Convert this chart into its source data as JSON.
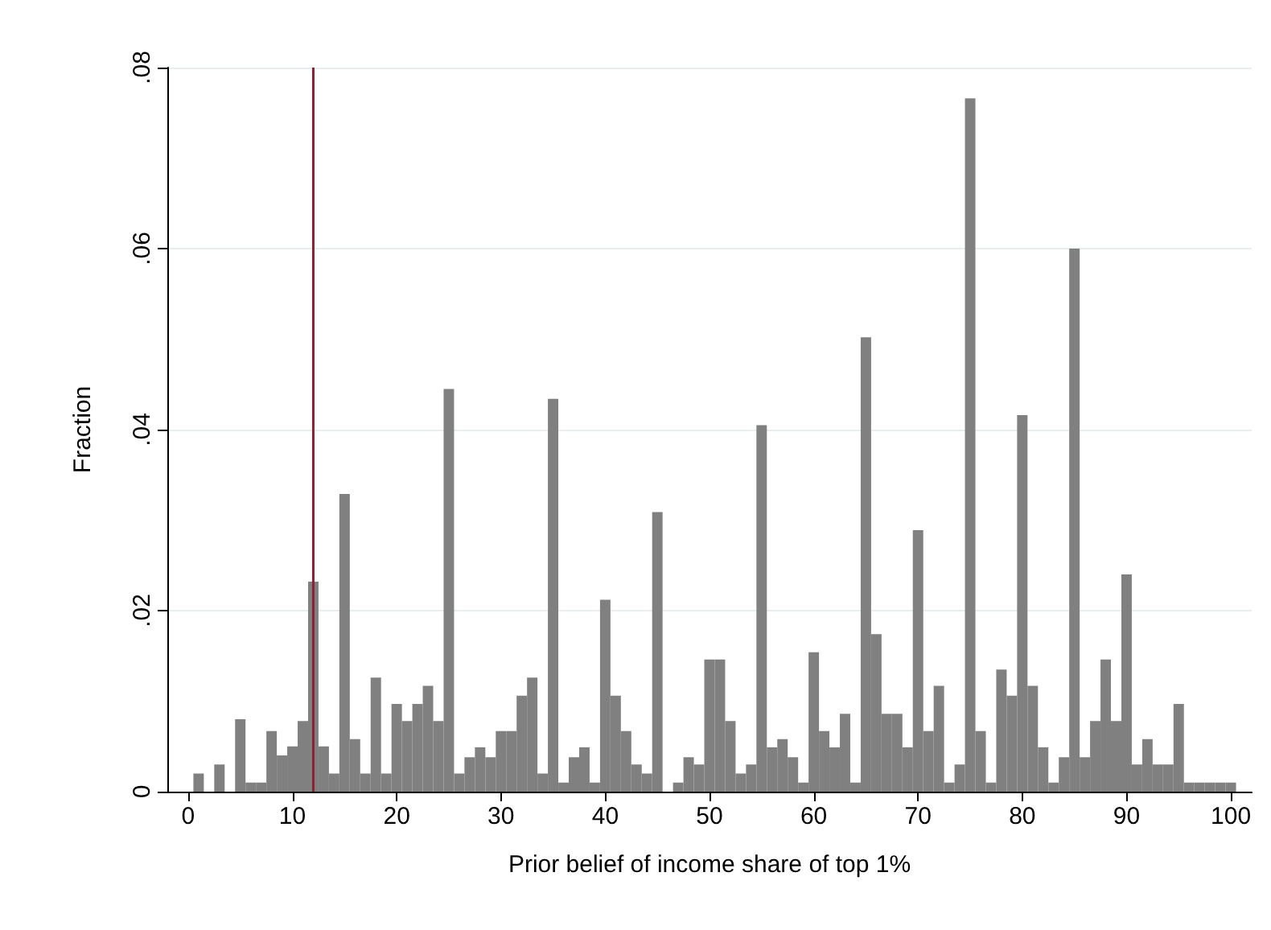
{
  "chart_data": {
    "type": "histogram",
    "xlabel": "Prior belief of income share of top 1%",
    "ylabel": "Fraction",
    "bins": [
      -0.5,
      0.5,
      1.5,
      2.5,
      3.5,
      4.5,
      5.5,
      6.5,
      7.5,
      8.5,
      9.5,
      10.5,
      11.5,
      12.5,
      13.5,
      14.5,
      15.5,
      16.5,
      17.5,
      18.5,
      19.5,
      20.5,
      21.5,
      22.5,
      23.5,
      24.5,
      25.5,
      26.5,
      27.5,
      28.5,
      29.5,
      30.5,
      31.5,
      32.5,
      33.5,
      34.5,
      35.5,
      36.5,
      37.5,
      38.5,
      39.5,
      40.5,
      41.5,
      42.5,
      43.5,
      44.5,
      45.5,
      46.5,
      47.5,
      48.5,
      49.5,
      50.5,
      51.5,
      52.5,
      53.5,
      54.5,
      55.5,
      56.5,
      57.5,
      58.5,
      59.5,
      60.5,
      61.5,
      62.5,
      63.5,
      64.5,
      65.5,
      66.5,
      67.5,
      68.5,
      69.5,
      70.5,
      71.5,
      72.5,
      73.5,
      74.5,
      75.5,
      76.5,
      77.5,
      78.5,
      79.5,
      80.5,
      81.5,
      82.5,
      83.5,
      84.5,
      85.5,
      86.5,
      87.5,
      88.5,
      89.5,
      90.5,
      91.5,
      92.5,
      93.5,
      94.5,
      95.5,
      96.5,
      97.5,
      98.5,
      99.5,
      100.5
    ],
    "values": [
      0,
      0.002,
      0,
      0.003,
      0,
      0.008,
      0.001,
      0.001,
      0.0067,
      0.004,
      0.005,
      0.0078,
      0.0232,
      0.005,
      0.002,
      0.0329,
      0.0058,
      0.002,
      0.0126,
      0.002,
      0.0097,
      0.0078,
      0.0097,
      0.0117,
      0.0078,
      0.0445,
      0.002,
      0.0038,
      0.0049,
      0.0038,
      0.0067,
      0.0067,
      0.0106,
      0.0126,
      0.002,
      0.0434,
      0.001,
      0.0038,
      0.0049,
      0.001,
      0.0212,
      0.0106,
      0.0067,
      0.003,
      0.002,
      0.0309,
      0,
      0.001,
      0.0038,
      0.003,
      0.0146,
      0.0146,
      0.0078,
      0.002,
      0.003,
      0.0405,
      0.0049,
      0.0058,
      0.0038,
      0.001,
      0.0154,
      0.0067,
      0.0049,
      0.0086,
      0.001,
      0.0502,
      0.0174,
      0.0086,
      0.0086,
      0.0049,
      0.0289,
      0.0067,
      0.0117,
      0.001,
      0.003,
      0.0766,
      0.0067,
      0.001,
      0.0135,
      0.0106,
      0.0416,
      0.0117,
      0.0049,
      0.001,
      0.0038,
      0.06,
      0.0038,
      0.0078,
      0.0146,
      0.0078,
      0.024,
      0.003,
      0.0058,
      0.003,
      0.003,
      0.0097,
      0.001,
      0.001,
      0.001,
      0.001,
      0.001
    ],
    "color": "#808080",
    "xlim": [
      -2,
      102
    ],
    "xticks": [
      0,
      10,
      20,
      30,
      40,
      50,
      60,
      70,
      80,
      90,
      100
    ],
    "ylim": [
      0,
      0.08
    ],
    "yticks": [
      {
        "value": 0,
        "label": "0"
      },
      {
        "value": 0.02,
        "label": ".02"
      },
      {
        "value": 0.04,
        "label": ".04"
      },
      {
        "value": 0.06,
        "label": ".06"
      },
      {
        "value": 0.08,
        "label": ".08"
      }
    ],
    "grid": "y",
    "ref_lines": [
      {
        "axis": "x",
        "value": 12,
        "color": "#8b2232"
      }
    ]
  }
}
